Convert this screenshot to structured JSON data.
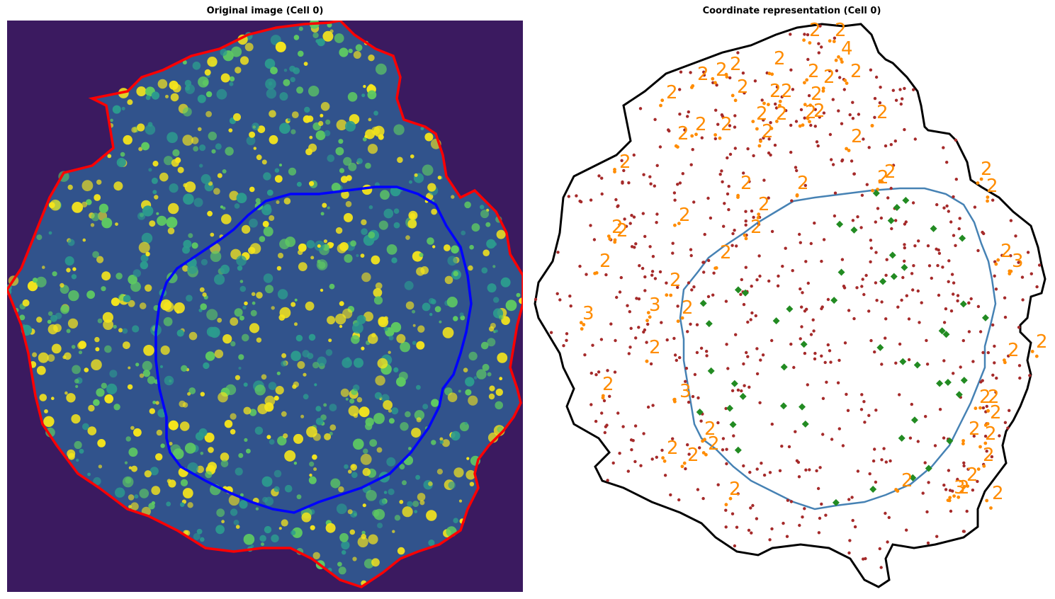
{
  "figure": {
    "left_title": "Original image (Cell 0)",
    "right_title": "Coordinate representation (Cell 0)"
  },
  "colors": {
    "image_background": "#3b1a60",
    "image_mid": "#2c7f8e",
    "image_spots": "#f5e51c",
    "cell_outline_image": "#ff0000",
    "nucleus_outline_image": "#0000ff",
    "cell_outline_coords": "#000000",
    "nucleus_outline_coords": "#4682b4",
    "rna_spot": "#a52a2a",
    "foci": "#ff8c00",
    "transcription_site": "#228b22"
  },
  "foci_counts": [
    "2",
    "2",
    "4",
    "2",
    "2",
    "2",
    "2",
    "2",
    "2",
    "2",
    "2",
    "2",
    "2",
    "2",
    "2",
    "2",
    "2",
    "2",
    "2",
    "2",
    "2",
    "2",
    "2",
    "2",
    "2",
    "2",
    "2",
    "2",
    "2",
    "2",
    "2",
    "2",
    "2",
    "2",
    "2",
    "2",
    "3",
    "3",
    "2",
    "2",
    "2",
    "3",
    "2",
    "2",
    "2",
    "2",
    "2",
    "2",
    "2",
    "3",
    "2",
    "2",
    "2",
    "2",
    "2",
    "2",
    "2",
    "2",
    "2",
    "2",
    "2",
    "2",
    "3",
    "2",
    "2",
    "2"
  ]
}
